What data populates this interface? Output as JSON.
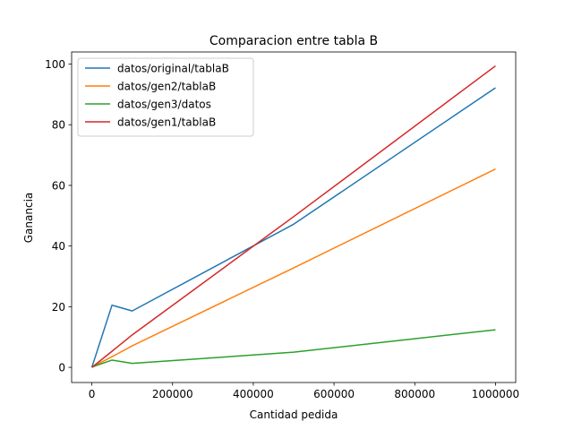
{
  "chart_data": {
    "type": "line",
    "title": "Comparacion entre tabla B",
    "xlabel": "Cantidad pedida",
    "ylabel": "Ganancia",
    "xlim": [
      -50000,
      1050000
    ],
    "ylim": [
      -5,
      104
    ],
    "xticks": [
      0,
      200000,
      400000,
      600000,
      800000,
      1000000
    ],
    "xtick_labels": [
      "0",
      "200000",
      "400000",
      "600000",
      "800000",
      "1000000"
    ],
    "yticks": [
      0,
      20,
      40,
      60,
      80,
      100
    ],
    "ytick_labels": [
      "0",
      "20",
      "40",
      "60",
      "80",
      "100"
    ],
    "grid": false,
    "legend_position": "upper-left",
    "series": [
      {
        "name": "datos/original/tablaB",
        "color": "#1f77b4",
        "x": [
          0,
          5000,
          50000,
          100000,
          500000,
          1000000
        ],
        "y": [
          0,
          2,
          20.5,
          18.6,
          47.2,
          92.2
        ]
      },
      {
        "name": "datos/gen2/tablaB",
        "color": "#ff7f0e",
        "x": [
          0,
          5000,
          50000,
          100000,
          500000,
          1000000
        ],
        "y": [
          0,
          0.4,
          3.5,
          7.1,
          32.8,
          65.4
        ]
      },
      {
        "name": "datos/gen3/datos",
        "color": "#2ca02c",
        "x": [
          0,
          5000,
          50000,
          100000,
          500000,
          1000000
        ],
        "y": [
          0,
          0.3,
          2.4,
          1.3,
          5,
          12.4
        ]
      },
      {
        "name": "datos/gen1/tablaB",
        "color": "#d62728",
        "x": [
          0,
          5000,
          50000,
          100000,
          500000,
          1000000
        ],
        "y": [
          0,
          0.5,
          5.3,
          10.7,
          49.7,
          99.4
        ]
      }
    ]
  }
}
